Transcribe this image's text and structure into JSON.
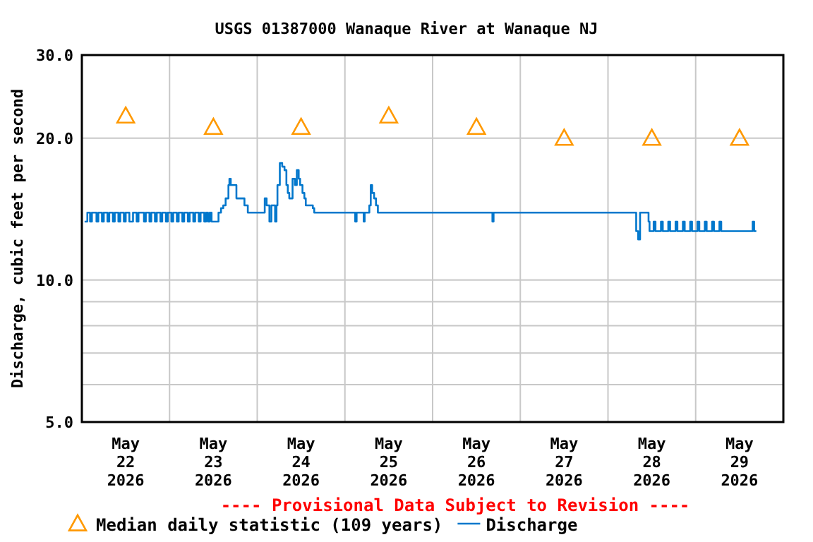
{
  "chart_data": {
    "type": "step",
    "title": "USGS 01387000 Wanaque River at Wanaque NJ",
    "ylabel": "Discharge, cubic feet per second",
    "annotations": [
      "---- Provisional Data Subject to Revision ----"
    ],
    "xlim": [
      "2026-05-22T00:00",
      "2026-05-30T00:00"
    ],
    "xticks": [
      {
        "value": "2026-05-22T12:00",
        "label": "May\n22\n2026"
      },
      {
        "value": "2026-05-23T12:00",
        "label": "May\n23\n2026"
      },
      {
        "value": "2026-05-24T12:00",
        "label": "May\n24\n2026"
      },
      {
        "value": "2026-05-25T12:00",
        "label": "May\n25\n2026"
      },
      {
        "value": "2026-05-26T12:00",
        "label": "May\n26\n2026"
      },
      {
        "value": "2026-05-27T12:00",
        "label": "May\n27\n2026"
      },
      {
        "value": "2026-05-28T12:00",
        "label": "May\n28\n2026"
      },
      {
        "value": "2026-05-29T12:00",
        "label": "May\n29\n2026"
      },
      {
        "value": "2026-05-23T00:00",
        "label": null
      },
      {
        "value": "2026-05-24T00:00",
        "label": null
      },
      {
        "value": "2026-05-25T00:00",
        "label": null
      },
      {
        "value": "2026-05-26T00:00",
        "label": null
      },
      {
        "value": "2026-05-27T00:00",
        "label": null
      },
      {
        "value": "2026-05-28T00:00",
        "label": null
      },
      {
        "value": "2026-05-29T00:00",
        "label": null
      }
    ],
    "ylim": [
      5,
      30
    ],
    "log": true,
    "yticks": [
      {
        "value": 5,
        "label": "5.0"
      },
      {
        "value": 6,
        "label": null
      },
      {
        "value": 7,
        "label": null
      },
      {
        "value": 8,
        "label": null
      },
      {
        "value": 9,
        "label": null
      },
      {
        "value": 10,
        "label": "10.0"
      },
      {
        "value": 20,
        "label": "20.0"
      },
      {
        "value": 30,
        "label": "30.0"
      }
    ],
    "grid": true,
    "legend": "bottom",
    "series": [
      {
        "name": "Median daily statistic (109 years)",
        "type": "scatter",
        "marker": "triangle",
        "color": "#ff9900",
        "x": [
          "2026-05-22T12:00",
          "2026-05-23T12:00",
          "2026-05-24T12:00",
          "2026-05-25T12:00",
          "2026-05-26T12:00",
          "2026-05-27T12:00",
          "2026-05-28T12:00",
          "2026-05-29T12:00"
        ],
        "values": [
          22.3,
          21.1,
          21.1,
          22.3,
          21.1,
          20.0,
          20.0,
          20.0
        ]
      },
      {
        "name": "Discharge",
        "marker": "none",
        "color": "#0077cc",
        "x": [
          "2026-05-22T00:45",
          "2026-05-22T01:30",
          "2026-05-22T02:15",
          "2026-05-22T02:45",
          "2026-05-22T04:00",
          "2026-05-22T04:30",
          "2026-05-22T05:30",
          "2026-05-22T06:00",
          "2026-05-22T07:00",
          "2026-05-22T07:30",
          "2026-05-22T08:30",
          "2026-05-22T09:00",
          "2026-05-22T10:00",
          "2026-05-22T10:30",
          "2026-05-22T11:30",
          "2026-05-22T12:00",
          "2026-05-22T13:00",
          "2026-05-22T14:00",
          "2026-05-22T15:00",
          "2026-05-22T15:30",
          "2026-05-22T17:00",
          "2026-05-22T17:30",
          "2026-05-22T18:30",
          "2026-05-22T19:00",
          "2026-05-22T20:00",
          "2026-05-22T20:30",
          "2026-05-22T21:30",
          "2026-05-22T22:00",
          "2026-05-22T23:00",
          "2026-05-22T23:30",
          "2026-05-23T00:30",
          "2026-05-23T01:00",
          "2026-05-23T02:00",
          "2026-05-23T02:30",
          "2026-05-23T03:30",
          "2026-05-23T04:00",
          "2026-05-23T05:00",
          "2026-05-23T05:30",
          "2026-05-23T06:30",
          "2026-05-23T07:00",
          "2026-05-23T08:00",
          "2026-05-23T08:30",
          "2026-05-23T09:30",
          "2026-05-23T10:00",
          "2026-05-23T10:30",
          "2026-05-23T11:00",
          "2026-05-23T11:30",
          "2026-05-23T13:24",
          "2026-05-23T14:05",
          "2026-05-23T14:42",
          "2026-05-23T15:21",
          "2026-05-23T16:07",
          "2026-05-23T16:23",
          "2026-05-23T16:45",
          "2026-05-23T18:18",
          "2026-05-23T20:30",
          "2026-05-23T21:25",
          "2026-05-24T02:03",
          "2026-05-24T02:34",
          "2026-05-24T03:20",
          "2026-05-24T03:52",
          "2026-05-24T04:53",
          "2026-05-24T05:16",
          "2026-05-24T05:32",
          "2026-05-24T06:11",
          "2026-05-24T06:50",
          "2026-05-24T07:28",
          "2026-05-24T07:59",
          "2026-05-24T08:22",
          "2026-05-24T08:46",
          "2026-05-24T09:40",
          "2026-05-24T10:19",
          "2026-05-24T10:50",
          "2026-05-24T11:21",
          "2026-05-24T11:44",
          "2026-05-24T12:23",
          "2026-05-24T12:54",
          "2026-05-24T13:17",
          "2026-05-24T15:13",
          "2026-05-24T15:36",
          "2026-05-25T02:49",
          "2026-05-25T03:12",
          "2026-05-25T05:08",
          "2026-05-25T05:24",
          "2026-05-25T06:41",
          "2026-05-25T07:04",
          "2026-05-25T07:27",
          "2026-05-25T07:59",
          "2026-05-25T08:30",
          "2026-05-25T09:01",
          "2026-05-26T16:22",
          "2026-05-26T16:41",
          "2026-05-28T07:43",
          "2026-05-28T08:16",
          "2026-05-28T08:47",
          "2026-05-28T11:06",
          "2026-05-28T11:22",
          "2026-05-28T12:30",
          "2026-05-28T13:00",
          "2026-05-28T14:30",
          "2026-05-28T15:00",
          "2026-05-28T16:30",
          "2026-05-28T17:00",
          "2026-05-28T18:30",
          "2026-05-28T19:00",
          "2026-05-28T20:30",
          "2026-05-28T21:00",
          "2026-05-28T22:30",
          "2026-05-28T23:00",
          "2026-05-29T00:30",
          "2026-05-29T01:00",
          "2026-05-29T02:30",
          "2026-05-29T03:00",
          "2026-05-29T04:30",
          "2026-05-29T05:00",
          "2026-05-29T06:30",
          "2026-05-29T07:00",
          "2026-05-29T15:36",
          "2026-05-29T16:00",
          "2026-05-29T16:36"
        ],
        "values": [
          13.3,
          13.9,
          13.3,
          13.9,
          13.3,
          13.9,
          13.3,
          13.9,
          13.3,
          13.9,
          13.3,
          13.9,
          13.3,
          13.9,
          13.3,
          13.9,
          13.3,
          13.9,
          13.3,
          13.9,
          13.3,
          13.9,
          13.3,
          13.9,
          13.3,
          13.9,
          13.3,
          13.9,
          13.3,
          13.9,
          13.3,
          13.9,
          13.3,
          13.9,
          13.3,
          13.9,
          13.3,
          13.9,
          13.3,
          13.9,
          13.3,
          13.9,
          13.3,
          13.9,
          13.3,
          13.9,
          13.3,
          13.9,
          14.2,
          14.4,
          14.9,
          15.9,
          16.4,
          15.9,
          14.9,
          14.4,
          13.9,
          14.9,
          14.4,
          13.3,
          14.4,
          13.3,
          14.4,
          15.9,
          17.7,
          17.4,
          17.1,
          15.9,
          15.3,
          14.9,
          16.4,
          15.9,
          17.1,
          16.4,
          15.9,
          15.3,
          14.9,
          14.4,
          14.2,
          13.9,
          13.3,
          13.9,
          13.3,
          13.9,
          14.4,
          15.9,
          15.3,
          14.9,
          14.4,
          13.9,
          13.3,
          13.9,
          12.7,
          12.2,
          13.9,
          13.3,
          12.7,
          13.3,
          12.7,
          13.3,
          12.7,
          13.3,
          12.7,
          13.3,
          12.7,
          13.3,
          12.7,
          13.3,
          12.7,
          13.3,
          12.7,
          13.3,
          12.7,
          13.3,
          12.7,
          13.3,
          12.7,
          13.3,
          12.7,
          12.7
        ]
      }
    ]
  }
}
